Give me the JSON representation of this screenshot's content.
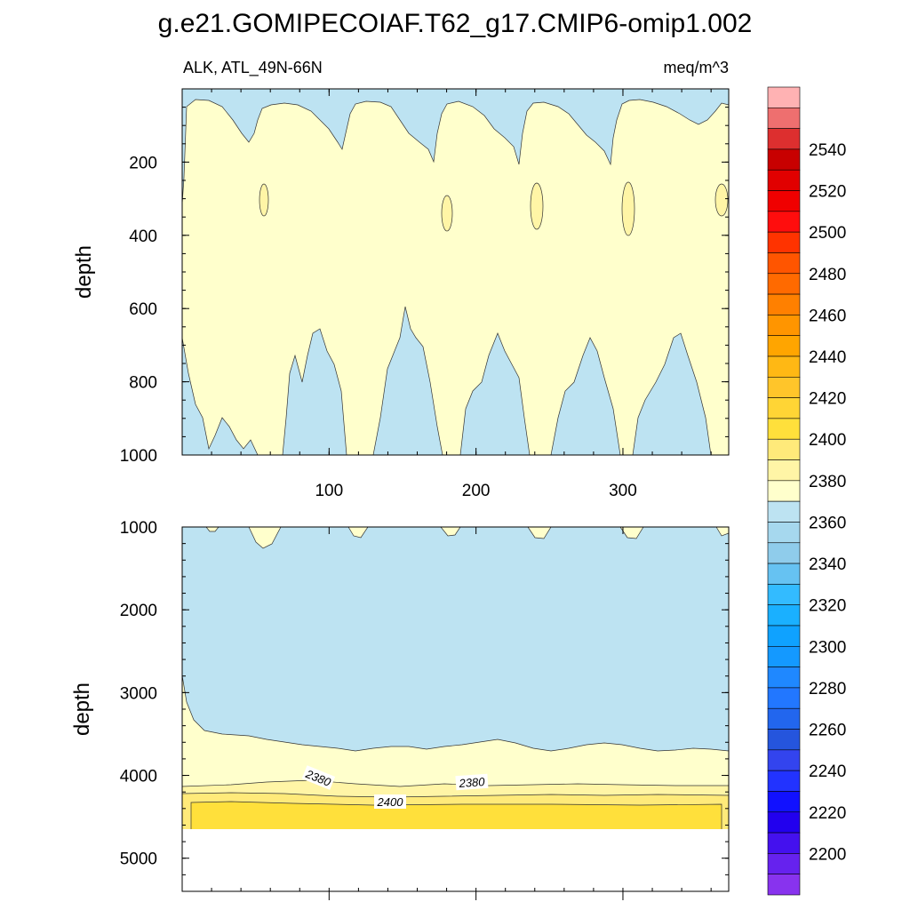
{
  "title": "g.e21.GOMIPECOIAF.T62_g17.CMIP6-omip1.002",
  "subtitle_left": "ALK, ATL_49N-66N",
  "subtitle_right": "meq/m^3",
  "colors": {
    "bg_light_blue": "#bde3f2",
    "yellow_pale": "#ffffcc",
    "yellow_light": "#fff5a6",
    "yellow_mid": "#ffea7a",
    "yellow_gold": "#ffe03b"
  },
  "chart_data": [
    {
      "type": "contour",
      "panel": "upper",
      "ylabel": "depth",
      "xlabel": "",
      "x_ticks": [
        "100",
        "200",
        "300"
      ],
      "y_ticks": [
        "200",
        "400",
        "600",
        "800",
        "1000"
      ],
      "ylim": [
        1000,
        0
      ],
      "xlim": [
        0,
        372
      ],
      "contour_levels_visible": [
        2360,
        2380,
        2390
      ]
    },
    {
      "type": "contour",
      "panel": "lower",
      "ylabel": "depth",
      "xlabel": "",
      "y_ticks": [
        "1000",
        "2000",
        "3000",
        "4000",
        "5000"
      ],
      "ylim": [
        5400,
        1000
      ],
      "xlim": [
        0,
        372
      ],
      "contour_labels": [
        "2380",
        "2400",
        "2380"
      ]
    }
  ],
  "colorbar": {
    "labels": [
      "2540",
      "2520",
      "2500",
      "2480",
      "2460",
      "2440",
      "2420",
      "2400",
      "2380",
      "2360",
      "2340",
      "2320",
      "2300",
      "2280",
      "2260",
      "2240",
      "2220",
      "2200"
    ],
    "colors": [
      "#ffb2b3",
      "#ee6f6f",
      "#dd2f2f",
      "#c80000",
      "#e10000",
      "#f00000",
      "#ff0d0d",
      "#ff3300",
      "#ff5500",
      "#ff6a00",
      "#ff8000",
      "#ff9500",
      "#ffa500",
      "#ffb814",
      "#ffc52a",
      "#ffd535",
      "#ffe03b",
      "#ffea7a",
      "#fff5a6",
      "#ffffcc",
      "#bde3f2",
      "#a6d8ee",
      "#8fcceb",
      "#66c2f2",
      "#33bbff",
      "#1ab0ff",
      "#0fa2ff",
      "#1499ff",
      "#1f88ff",
      "#2277ff",
      "#2266ee",
      "#2555dd",
      "#3344ee",
      "#2233ff",
      "#1111ff",
      "#2200ee",
      "#4411ee",
      "#6622ee",
      "#8833ee"
    ]
  }
}
